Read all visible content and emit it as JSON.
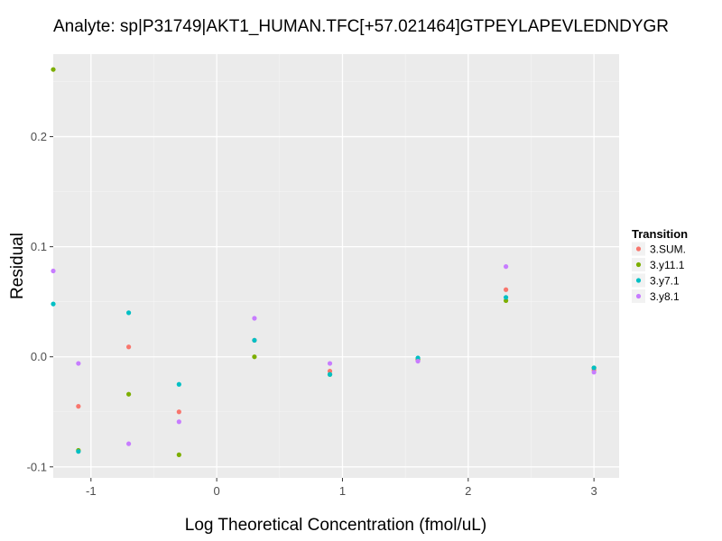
{
  "chart_data": {
    "type": "scatter",
    "title": "Analyte: sp|P31749|AKT1_HUMAN.TFC[+57.021464]GTPEYLAPEVLEDNDYGR",
    "xlabel": "Log Theoretical Concentration (fmol/uL)",
    "ylabel": "Residual",
    "xlim": [
      -1.3,
      3.2
    ],
    "ylim": [
      -0.11,
      0.275
    ],
    "x_ticks": [
      -1,
      0,
      1,
      2,
      3
    ],
    "x_tick_labels": [
      "-1",
      "0",
      "1",
      "2",
      "3"
    ],
    "y_ticks": [
      -0.1,
      0.0,
      0.1,
      0.2
    ],
    "y_tick_labels": [
      "-0.1",
      "0.0",
      "0.1",
      "0.2"
    ],
    "grid": true,
    "legend": {
      "title": "Transition",
      "placement": "right"
    },
    "series": [
      {
        "name": "3.SUM.",
        "color": "#F8766D",
        "points": [
          [
            -1.1,
            -0.045
          ],
          [
            -0.7,
            0.009
          ],
          [
            -0.3,
            -0.05
          ],
          [
            0.3,
            0.015
          ],
          [
            0.9,
            -0.013
          ],
          [
            1.6,
            -0.003
          ],
          [
            2.3,
            0.061
          ],
          [
            3.0,
            -0.012
          ]
        ]
      },
      {
        "name": "3.y11.1",
        "color": "#7CAE00",
        "points": [
          [
            -1.3,
            0.261
          ],
          [
            -1.1,
            -0.085
          ],
          [
            -0.7,
            -0.034
          ],
          [
            -0.3,
            -0.089
          ],
          [
            0.3,
            0.0
          ],
          [
            0.9,
            -0.016
          ],
          [
            1.6,
            -0.002
          ],
          [
            2.3,
            0.051
          ],
          [
            3.0,
            -0.01
          ]
        ]
      },
      {
        "name": "3.y7.1",
        "color": "#00BFC4",
        "points": [
          [
            -1.3,
            0.048
          ],
          [
            -1.1,
            -0.086
          ],
          [
            -0.7,
            0.04
          ],
          [
            -0.3,
            -0.025
          ],
          [
            0.3,
            0.015
          ],
          [
            0.9,
            -0.016
          ],
          [
            1.6,
            -0.001
          ],
          [
            2.3,
            0.054
          ],
          [
            3.0,
            -0.01
          ]
        ]
      },
      {
        "name": "3.y8.1",
        "color": "#C77CFF",
        "points": [
          [
            -1.3,
            0.078
          ],
          [
            -1.1,
            -0.006
          ],
          [
            -0.7,
            -0.079
          ],
          [
            -0.3,
            -0.059
          ],
          [
            0.3,
            0.035
          ],
          [
            0.9,
            -0.006
          ],
          [
            1.6,
            -0.004
          ],
          [
            2.3,
            0.082
          ],
          [
            3.0,
            -0.014
          ]
        ]
      }
    ]
  }
}
